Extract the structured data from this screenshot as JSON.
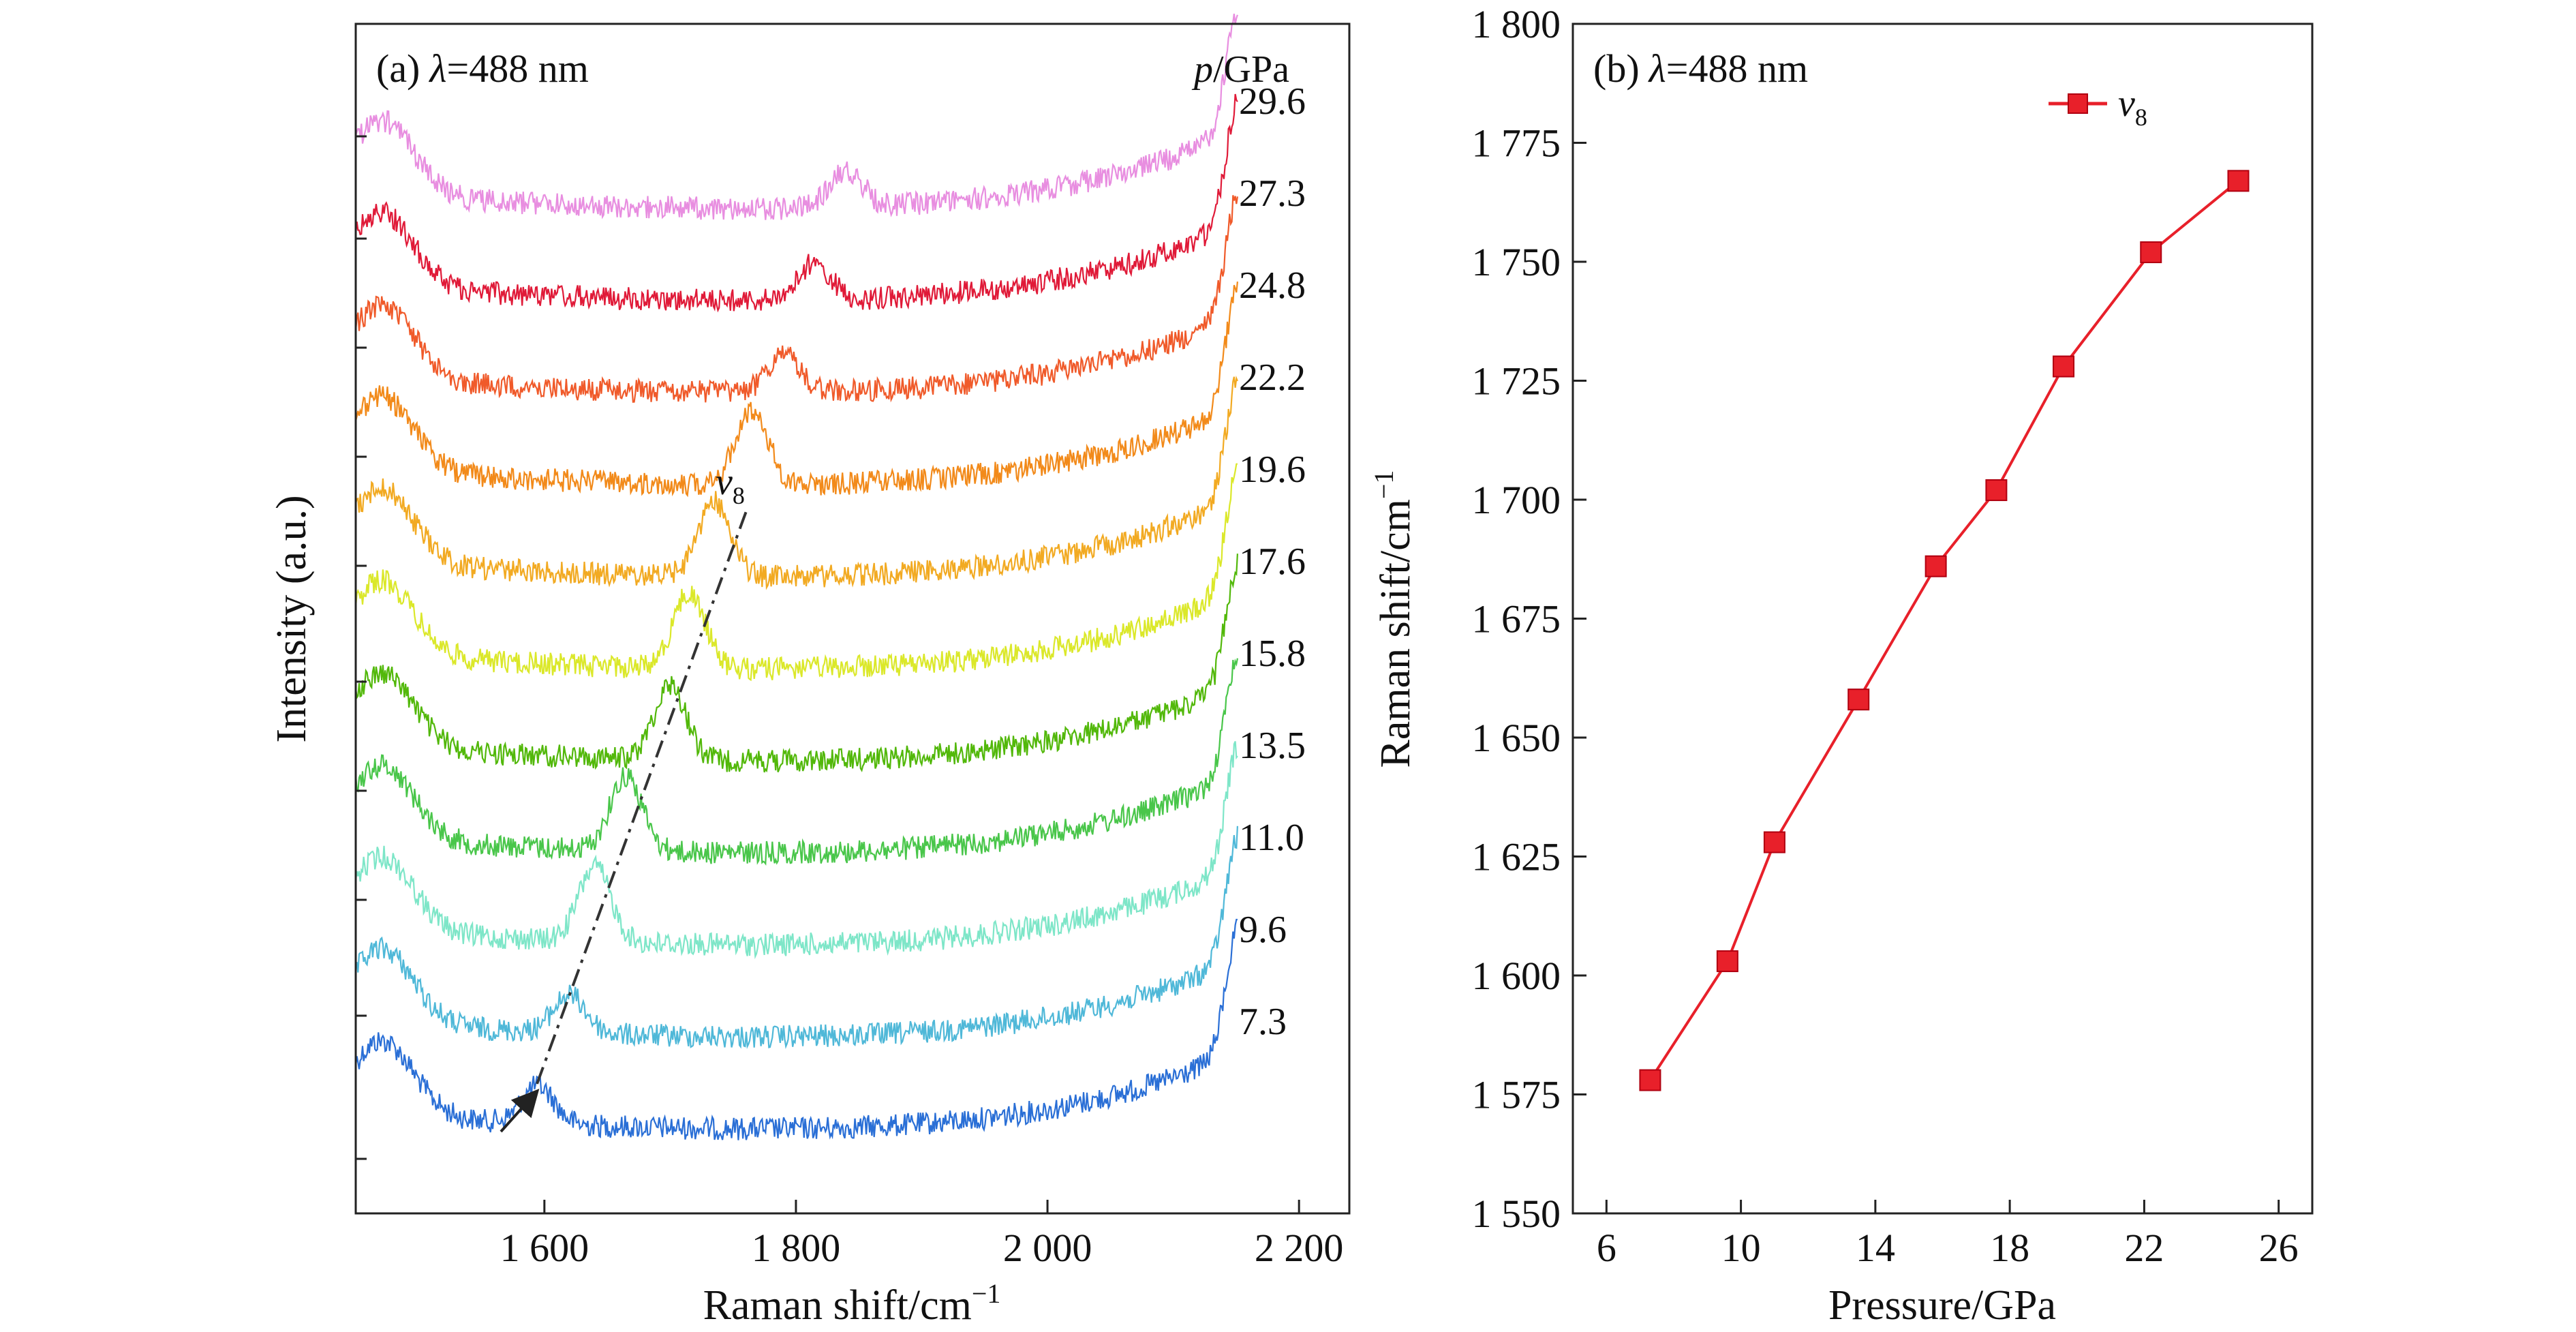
{
  "chart_data": [
    {
      "type": "line",
      "panel_label": "(a)",
      "panel_lambda": "=488 nm",
      "xlabel": "Raman shift/cm",
      "xlabel_sup": "−1",
      "ylabel": "Intensity (a.u.)",
      "xlim": [
        1450,
        2240
      ],
      "xticks": [
        1600,
        1800,
        2000,
        2200
      ],
      "xtick_labels": [
        "1 600",
        "1 800",
        "2 000",
        "2 200"
      ],
      "pressure_header_var": "p",
      "pressure_header_unit": "/GPa",
      "peak_label": "v",
      "peak_label_sub": "8",
      "series": [
        {
          "pressure": "7.3",
          "color": "#2a6fd6",
          "peak_x": 1595
        },
        {
          "pressure": "9.6",
          "color": "#4fb8d8",
          "peak_x": 1620
        },
        {
          "pressure": "11.0",
          "color": "#7ee6c8",
          "peak_x": 1640
        },
        {
          "pressure": "13.5",
          "color": "#49c64a",
          "peak_x": 1665
        },
        {
          "pressure": "15.8",
          "color": "#52b80a",
          "peak_x": 1700
        },
        {
          "pressure": "17.6",
          "color": "#dbe82a",
          "peak_x": 1715
        },
        {
          "pressure": "19.6",
          "color": "#f2aa22",
          "peak_x": 1735
        },
        {
          "pressure": "22.2",
          "color": "#f28a1a",
          "peak_x": 1765
        },
        {
          "pressure": "24.8",
          "color": "#f05a2a",
          "peak_x": 1790
        },
        {
          "pressure": "27.3",
          "color": "#e01a38",
          "peak_x": 1815
        },
        {
          "pressure": "29.6",
          "color": "#e88ee0",
          "peak_x": 1840
        }
      ]
    },
    {
      "type": "line",
      "panel_label": "(b)",
      "panel_lambda": "=488 nm",
      "xlabel": "Pressure/GPa",
      "ylabel": "Raman shift/cm",
      "ylabel_sup": "−1",
      "xlim": [
        5,
        27
      ],
      "ylim": [
        1550,
        1800
      ],
      "xticks": [
        6,
        10,
        14,
        18,
        22,
        26
      ],
      "xtick_labels": [
        "6",
        "10",
        "14",
        "18",
        "22",
        "26"
      ],
      "yticks": [
        1550,
        1575,
        1600,
        1625,
        1650,
        1675,
        1700,
        1725,
        1750,
        1775,
        1800
      ],
      "ytick_labels": [
        "1 550",
        "1 575",
        "1 600",
        "1 625",
        "1 650",
        "1 675",
        "1 700",
        "1 725",
        "1 750",
        "1 775",
        "1 800"
      ],
      "legend_position": "top-right",
      "series": [
        {
          "name": "v",
          "name_sub": "8",
          "color": "#e8202a",
          "x": [
            7.3,
            9.6,
            11.0,
            13.5,
            15.8,
            17.6,
            19.6,
            22.2,
            24.8
          ],
          "y": [
            1578,
            1603,
            1628,
            1658,
            1686,
            1702,
            1728,
            1752,
            1767
          ]
        }
      ]
    }
  ]
}
